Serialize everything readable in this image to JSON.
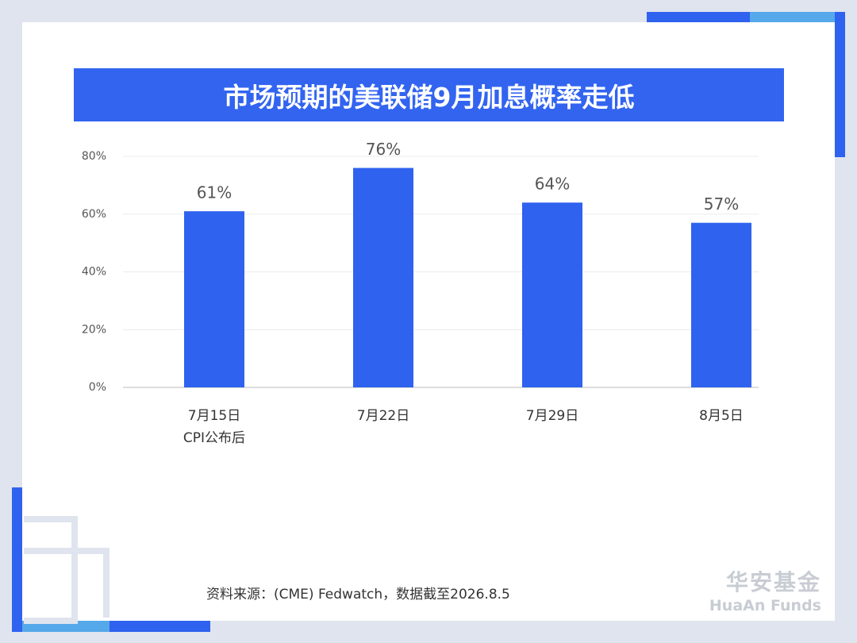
{
  "chart_data": {
    "type": "bar",
    "title": "市场预期的美联储9月加息概率走低",
    "categories": [
      "7月15日\nCPI公布后",
      "7月22日",
      "7月29日",
      "8月5日"
    ],
    "values": [
      61,
      76,
      64,
      57
    ],
    "value_labels": [
      "61%",
      "76%",
      "64%",
      "57%"
    ],
    "color": "#2f62ee",
    "ylim": [
      0,
      80
    ],
    "yticks": [
      {
        "value": 0,
        "label": "0%"
      },
      {
        "value": 20,
        "label": "20%"
      },
      {
        "value": 40,
        "label": "40%"
      },
      {
        "value": 60,
        "label": "60%"
      },
      {
        "value": 80,
        "label": "80%"
      }
    ],
    "grid": true
  },
  "source": "资料来源：(CME) Fedwatch，数据截至2026.8.5",
  "logo": {
    "cn": "华安基金",
    "en": "HuaAn Funds"
  }
}
